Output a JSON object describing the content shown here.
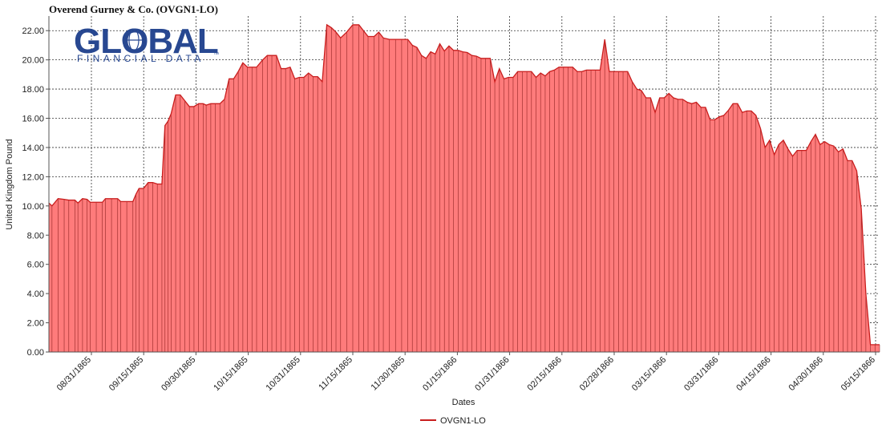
{
  "chart_data": {
    "type": "area",
    "title": "Overend Gurney & Co. (OVGN1-LO)",
    "xlabel": "Dates",
    "ylabel": "United Kingdom Pound",
    "ylim": [
      0,
      23
    ],
    "y_ticks": [
      "0.00",
      "2.00",
      "4.00",
      "6.00",
      "8.00",
      "10.00",
      "12.00",
      "14.00",
      "16.00",
      "18.00",
      "20.00",
      "22.00"
    ],
    "x_ticks": [
      "08/31/1865",
      "09/15/1865",
      "09/30/1865",
      "10/15/1865",
      "10/31/1865",
      "11/15/1865",
      "11/30/1865",
      "01/15/1866",
      "01/31/1866",
      "02/15/1866",
      "02/28/1866",
      "03/15/1866",
      "03/31/1866",
      "04/15/1866",
      "04/30/1866",
      "05/15/1866"
    ],
    "grid": true,
    "legend_position": "bottom-center",
    "colors": {
      "fill": "#ff7b7b",
      "line": "#c81e1e",
      "bar_line": "#8a1e1e",
      "grid": "#333333"
    },
    "logo": {
      "text_main": "GLOBAL",
      "text_sub": "FINANCIAL DATA",
      "trademark": "™"
    },
    "series": [
      {
        "name": "OVGN1-LO",
        "points": [
          [
            0.0,
            10.2
          ],
          [
            0.004,
            10.0
          ],
          [
            0.012,
            10.5
          ],
          [
            0.02,
            10.45
          ],
          [
            0.026,
            10.4
          ],
          [
            0.034,
            10.4
          ],
          [
            0.038,
            10.2
          ],
          [
            0.044,
            10.5
          ],
          [
            0.05,
            10.45
          ],
          [
            0.054,
            10.25
          ],
          [
            0.062,
            10.25
          ],
          [
            0.07,
            10.25
          ],
          [
            0.074,
            10.5
          ],
          [
            0.082,
            10.5
          ],
          [
            0.09,
            10.5
          ],
          [
            0.094,
            10.3
          ],
          [
            0.102,
            10.3
          ],
          [
            0.11,
            10.3
          ],
          [
            0.114,
            10.8
          ],
          [
            0.118,
            11.2
          ],
          [
            0.124,
            11.2
          ],
          [
            0.13,
            11.6
          ],
          [
            0.136,
            11.6
          ],
          [
            0.142,
            11.5
          ],
          [
            0.148,
            11.5
          ],
          [
            0.152,
            15.5
          ],
          [
            0.156,
            15.8
          ],
          [
            0.16,
            16.3
          ],
          [
            0.166,
            17.6
          ],
          [
            0.172,
            17.6
          ],
          [
            0.178,
            17.2
          ],
          [
            0.184,
            16.8
          ],
          [
            0.19,
            16.8
          ],
          [
            0.196,
            17.0
          ],
          [
            0.202,
            17.0
          ],
          [
            0.206,
            16.9
          ],
          [
            0.212,
            17.0
          ],
          [
            0.218,
            17.0
          ],
          [
            0.224,
            17.0
          ],
          [
            0.23,
            17.3
          ],
          [
            0.236,
            18.7
          ],
          [
            0.242,
            18.7
          ],
          [
            0.248,
            19.2
          ],
          [
            0.254,
            19.8
          ],
          [
            0.26,
            19.5
          ],
          [
            0.266,
            19.5
          ],
          [
            0.272,
            19.5
          ],
          [
            0.28,
            20.0
          ],
          [
            0.286,
            20.3
          ],
          [
            0.292,
            20.3
          ],
          [
            0.298,
            20.3
          ],
          [
            0.304,
            19.4
          ],
          [
            0.31,
            19.4
          ],
          [
            0.316,
            19.5
          ],
          [
            0.322,
            18.7
          ],
          [
            0.328,
            18.8
          ],
          [
            0.334,
            18.8
          ],
          [
            0.34,
            19.1
          ],
          [
            0.346,
            18.85
          ],
          [
            0.352,
            18.85
          ],
          [
            0.358,
            18.5
          ],
          [
            0.364,
            22.4
          ],
          [
            0.37,
            22.2
          ],
          [
            0.376,
            21.9
          ],
          [
            0.382,
            21.5
          ],
          [
            0.39,
            21.9
          ],
          [
            0.398,
            22.4
          ],
          [
            0.406,
            22.4
          ],
          [
            0.412,
            22.0
          ],
          [
            0.418,
            21.6
          ],
          [
            0.426,
            21.6
          ],
          [
            0.432,
            21.9
          ],
          [
            0.438,
            21.5
          ],
          [
            0.446,
            21.4
          ],
          [
            0.454,
            21.4
          ],
          [
            0.462,
            21.4
          ],
          [
            0.47,
            21.4
          ],
          [
            0.476,
            21.0
          ],
          [
            0.482,
            20.85
          ],
          [
            0.488,
            20.3
          ],
          [
            0.494,
            20.1
          ],
          [
            0.5,
            20.55
          ],
          [
            0.506,
            20.4
          ],
          [
            0.512,
            21.1
          ],
          [
            0.518,
            20.6
          ],
          [
            0.524,
            20.95
          ],
          [
            0.53,
            20.65
          ],
          [
            0.536,
            20.65
          ],
          [
            0.542,
            20.55
          ],
          [
            0.548,
            20.5
          ],
          [
            0.554,
            20.3
          ],
          [
            0.56,
            20.25
          ],
          [
            0.566,
            20.1
          ],
          [
            0.572,
            20.1
          ],
          [
            0.578,
            20.1
          ],
          [
            0.584,
            18.5
          ],
          [
            0.59,
            19.4
          ],
          [
            0.596,
            18.7
          ],
          [
            0.602,
            18.8
          ],
          [
            0.608,
            18.8
          ],
          [
            0.614,
            19.2
          ],
          [
            0.62,
            19.2
          ],
          [
            0.626,
            19.2
          ],
          [
            0.632,
            19.2
          ],
          [
            0.638,
            18.8
          ],
          [
            0.644,
            19.1
          ],
          [
            0.65,
            18.9
          ],
          [
            0.656,
            19.2
          ],
          [
            0.662,
            19.3
          ],
          [
            0.668,
            19.5
          ],
          [
            0.674,
            19.5
          ],
          [
            0.68,
            19.5
          ],
          [
            0.686,
            19.5
          ],
          [
            0.692,
            19.2
          ],
          [
            0.698,
            19.2
          ],
          [
            0.704,
            19.3
          ],
          [
            0.71,
            19.3
          ],
          [
            0.716,
            19.3
          ],
          [
            0.722,
            19.3
          ],
          [
            0.728,
            21.4
          ],
          [
            0.734,
            19.2
          ],
          [
            0.74,
            19.2
          ],
          [
            0.746,
            19.2
          ],
          [
            0.752,
            19.2
          ],
          [
            0.758,
            19.2
          ],
          [
            0.764,
            18.5
          ],
          [
            0.77,
            18.0
          ],
          [
            0.776,
            17.9
          ],
          [
            0.782,
            17.4
          ],
          [
            0.788,
            17.4
          ],
          [
            0.794,
            16.4
          ],
          [
            0.8,
            17.4
          ],
          [
            0.806,
            17.4
          ],
          [
            0.812,
            17.7
          ],
          [
            0.818,
            17.4
          ],
          [
            0.824,
            17.3
          ],
          [
            0.83,
            17.3
          ],
          [
            0.836,
            17.1
          ],
          [
            0.842,
            17.0
          ],
          [
            0.848,
            17.1
          ],
          [
            0.854,
            16.75
          ],
          [
            0.86,
            16.75
          ],
          [
            0.866,
            15.9
          ],
          [
            0.872,
            15.9
          ],
          [
            0.878,
            16.1
          ],
          [
            0.884,
            16.2
          ],
          [
            0.89,
            16.55
          ],
          [
            0.896,
            17.0
          ],
          [
            0.902,
            17.0
          ],
          [
            0.908,
            16.4
          ],
          [
            0.914,
            16.5
          ],
          [
            0.92,
            16.5
          ],
          [
            0.926,
            16.2
          ],
          [
            0.932,
            15.3
          ],
          [
            0.938,
            14.0
          ],
          [
            0.944,
            14.5
          ],
          [
            0.95,
            13.5
          ],
          [
            0.956,
            14.2
          ],
          [
            0.962,
            14.5
          ],
          [
            0.968,
            13.9
          ],
          [
            0.974,
            13.4
          ],
          [
            0.98,
            13.8
          ],
          [
            0.986,
            13.8
          ],
          [
            0.992,
            13.8
          ],
          [
            0.998,
            14.4
          ],
          [
            1.004,
            14.9
          ],
          [
            1.01,
            14.2
          ],
          [
            1.016,
            14.4
          ],
          [
            1.022,
            14.2
          ],
          [
            1.028,
            14.1
          ],
          [
            1.034,
            13.7
          ],
          [
            1.04,
            13.9
          ],
          [
            1.046,
            13.1
          ],
          [
            1.052,
            13.1
          ],
          [
            1.058,
            12.4
          ],
          [
            1.064,
            9.8
          ],
          [
            1.07,
            4.0
          ],
          [
            1.076,
            0.5
          ],
          [
            1.082,
            0.5
          ],
          [
            1.088,
            0.5
          ]
        ]
      }
    ]
  }
}
